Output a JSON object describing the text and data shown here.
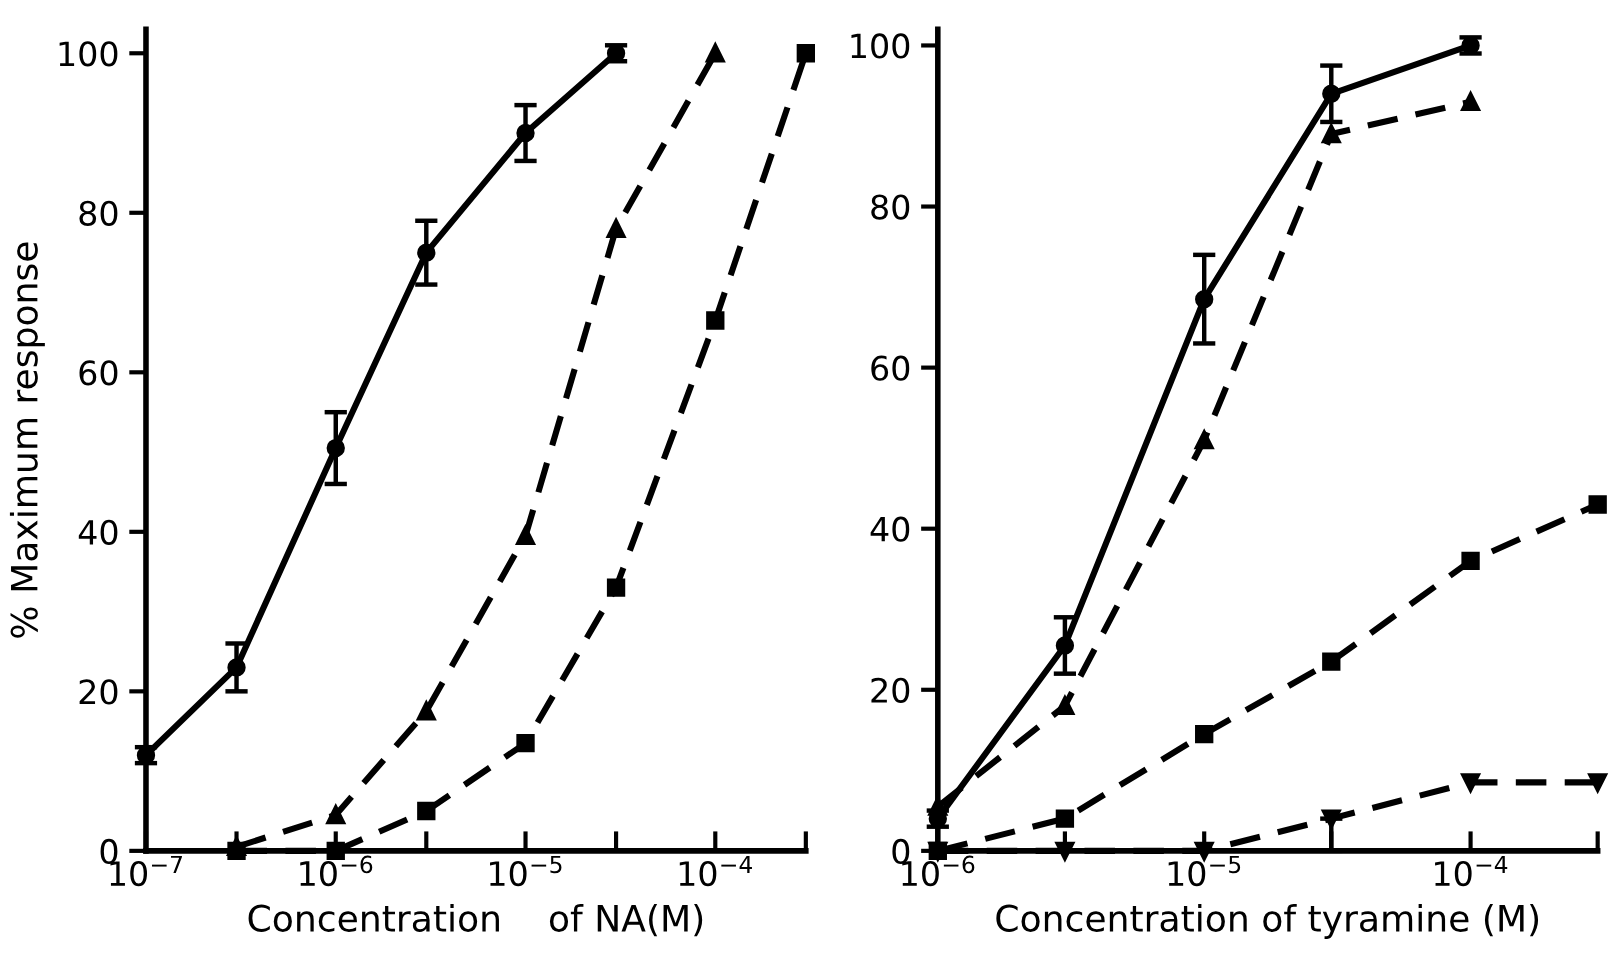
{
  "chart_data": [
    {
      "type": "line",
      "xlabel": "Concentration    of NA(M)",
      "ylabel": "% Maximum response",
      "log": "x",
      "grid": false,
      "legend": false,
      "xlim": [
        1e-07,
        0.0003
      ],
      "ylim": [
        0,
        103
      ],
      "xticks": [
        {
          "value": 1e-07,
          "label": "10$^{−7}$"
        },
        {
          "value": 3e-07,
          "label": null
        },
        {
          "value": 1e-06,
          "label": "10$^{−6}$"
        },
        {
          "value": 3e-06,
          "label": null
        },
        {
          "value": 1e-05,
          "label": "10$^{−5}$"
        },
        {
          "value": 3e-05,
          "label": null
        },
        {
          "value": 0.0001,
          "label": "10$^{−4}$"
        },
        {
          "value": 0.0003,
          "label": null
        }
      ],
      "yticks": [
        0,
        20,
        40,
        60,
        80,
        100
      ],
      "series": [
        {
          "color": "#000000",
          "marker": "circle",
          "line_style": "solid",
          "x": [
            1e-07,
            3e-07,
            1e-06,
            3e-06,
            1e-05,
            3e-05
          ],
          "values": [
            12,
            23,
            50.5,
            75,
            90,
            100
          ],
          "errors": [
            1,
            3,
            4.5,
            4,
            3.5,
            1
          ]
        },
        {
          "color": "#000000",
          "marker": "triangle",
          "line_style": "dashed",
          "x": [
            3e-07,
            1e-06,
            3e-06,
            1e-05,
            3e-05,
            0.0001
          ],
          "values": [
            0.5,
            4.5,
            17.5,
            39.5,
            78,
            100
          ]
        },
        {
          "color": "#000000",
          "marker": "square",
          "line_style": "dashed",
          "x": [
            3e-07,
            1e-06,
            3e-06,
            1e-05,
            3e-05,
            0.0001,
            0.0003
          ],
          "values": [
            0,
            0,
            5,
            13.5,
            33,
            66.5,
            100
          ]
        }
      ]
    },
    {
      "type": "line",
      "xlabel": "Concentration of tyramine (M)",
      "log": "x",
      "grid": false,
      "legend": false,
      "xlim": [
        1e-06,
        0.0003
      ],
      "ylim": [
        0,
        102
      ],
      "xticks": [
        {
          "value": 1e-06,
          "label": "10$^{−6}$"
        },
        {
          "value": 3e-06,
          "label": null
        },
        {
          "value": 1e-05,
          "label": "10$^{−5}$"
        },
        {
          "value": 3e-05,
          "label": null
        },
        {
          "value": 0.0001,
          "label": "10$^{−4}$"
        },
        {
          "value": 0.0003,
          "label": null
        }
      ],
      "yticks": [
        0,
        20,
        40,
        60,
        80,
        100
      ],
      "series": [
        {
          "color": "#000000",
          "marker": "circle",
          "line_style": "solid",
          "x": [
            1e-06,
            3e-06,
            1e-05,
            3e-05,
            0.0001
          ],
          "values": [
            4,
            25.5,
            68.5,
            94,
            100
          ],
          "errors": [
            1,
            3.5,
            5.5,
            3.5,
            1
          ]
        },
        {
          "color": "#000000",
          "marker": "triangle",
          "line_style": "dashed",
          "x": [
            1e-06,
            3e-06,
            1e-05,
            3e-05,
            0.0001
          ],
          "values": [
            5.5,
            18,
            51,
            89,
            93
          ]
        },
        {
          "color": "#000000",
          "marker": "square",
          "line_style": "dashed",
          "x": [
            1e-06,
            3e-06,
            1e-05,
            3e-05,
            0.0001,
            0.0003
          ],
          "values": [
            0,
            4,
            14.5,
            23.5,
            36,
            43
          ]
        },
        {
          "color": "#000000",
          "marker": "triangle_down",
          "line_style": "dashed",
          "x": [
            1e-06,
            3e-06,
            1e-05,
            3e-05,
            0.0001,
            0.0003
          ],
          "values": [
            0,
            0,
            0,
            4,
            8.5,
            8.5
          ],
          "errors": [
            null,
            null,
            null,
            [
              4,
              0
            ],
            null,
            null
          ]
        }
      ]
    }
  ]
}
